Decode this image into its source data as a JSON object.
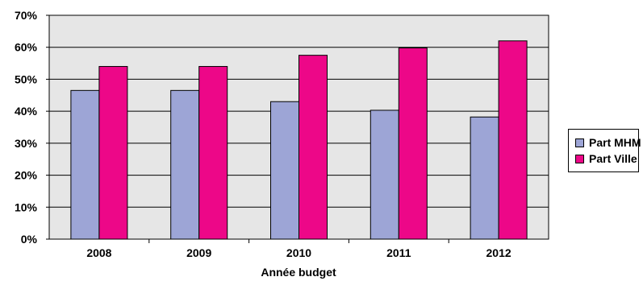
{
  "chart_data": {
    "type": "bar",
    "categories": [
      "2008",
      "2009",
      "2010",
      "2011",
      "2012"
    ],
    "series": [
      {
        "name": "Part MHM",
        "values": [
          46.5,
          46.5,
          43.0,
          40.3,
          38.2
        ],
        "color": "#9da5d6"
      },
      {
        "name": "Part Ville",
        "values": [
          54.0,
          54.0,
          57.5,
          59.8,
          62.0
        ],
        "color": "#ed0788"
      }
    ],
    "y_ticks": [
      "0%",
      "10%",
      "20%",
      "30%",
      "40%",
      "50%",
      "60%",
      "70%"
    ],
    "ylim": [
      0,
      70
    ],
    "xlabel": "Année budget",
    "ylabel": "",
    "title": "",
    "grid": true,
    "legend_position": "right",
    "plot_background": "#e6e6e6"
  }
}
